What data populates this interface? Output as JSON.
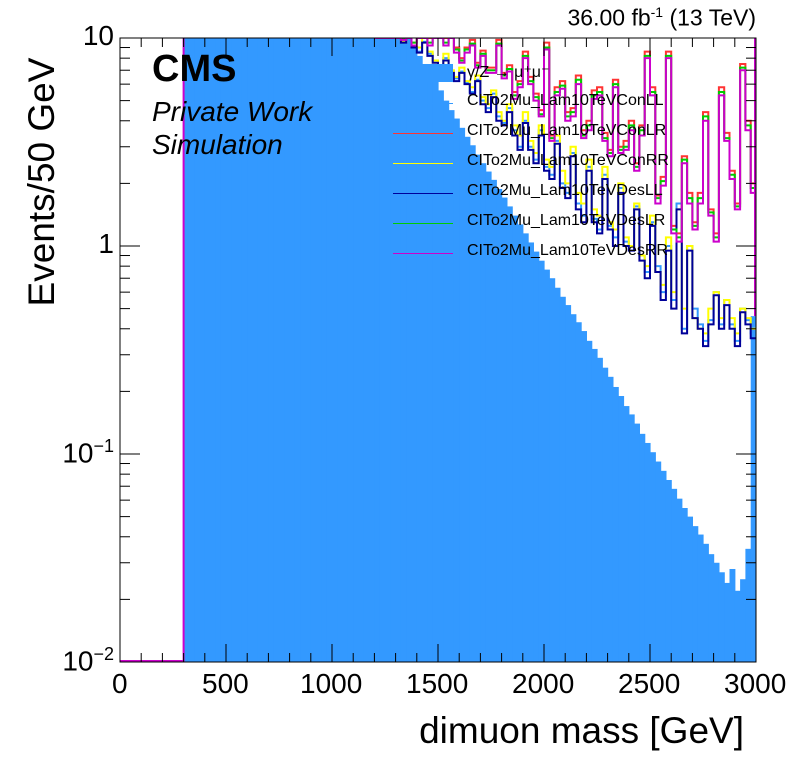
{
  "header": {
    "lumi_value": "36.00 fb",
    "lumi_exponent": "-1",
    "lumi_energy": " (13 TeV)",
    "experiment": "CMS",
    "subtitle_1": "Private Work",
    "subtitle_2": "Simulation"
  },
  "colors": {
    "dy_fill": "#3399ff",
    "ConLL": "#3399ff",
    "ConLR": "#ff3333",
    "ConRR": "#ffff00",
    "DesLL": "#000099",
    "DesLR": "#00cc00",
    "DesRR": "#cc00cc",
    "axis": "#000000"
  },
  "chart_data": {
    "type": "histogram",
    "xlabel": "dimuon mass [GeV]",
    "ylabel": "Events/50 GeV",
    "xlim": [
      0,
      3000
    ],
    "ylim": [
      0.01,
      10
    ],
    "yscale": "log",
    "bin_width": 25,
    "x_ticks": [
      "0",
      "500",
      "1000",
      "1500",
      "2000",
      "2500",
      "3000"
    ],
    "y_ticks": [
      {
        "value": 10,
        "base": "10",
        "exp": ""
      },
      {
        "value": 1,
        "base": "1",
        "exp": ""
      },
      {
        "value": 0.1,
        "base": "10",
        "exp": "−1"
      },
      {
        "value": 0.01,
        "base": "10",
        "exp": "−2"
      }
    ],
    "legend_position": "top-right",
    "background": {
      "name": "γ/Z → μ⁺μ⁻",
      "style": "fill",
      "x_start": 300,
      "x_end": 3000,
      "values": [
        12,
        12,
        12,
        12,
        12,
        12,
        12,
        12,
        12,
        12,
        12,
        12,
        12,
        12,
        12,
        12,
        12,
        12,
        12,
        12,
        12,
        12,
        12,
        12,
        12,
        12,
        12,
        12,
        12,
        12,
        12,
        12,
        12,
        12,
        12,
        12,
        12,
        12,
        12,
        12,
        12,
        11,
        10.0,
        9.1,
        8.2,
        7.5,
        6.8,
        6.2,
        5.6,
        5.0,
        4.5,
        4.1,
        3.7,
        3.35,
        3.05,
        2.75,
        2.5,
        2.28,
        2.08,
        1.88,
        1.71,
        1.55,
        1.4,
        1.27,
        1.15,
        1.04,
        0.94,
        0.85,
        0.77,
        0.7,
        0.63,
        0.57,
        0.52,
        0.47,
        0.43,
        0.39,
        0.35,
        0.32,
        0.29,
        0.26,
        0.235,
        0.21,
        0.19,
        0.17,
        0.155,
        0.14,
        0.125,
        0.113,
        0.102,
        0.092,
        0.083,
        0.075,
        0.068,
        0.061,
        0.055,
        0.05,
        0.045,
        0.041,
        0.037,
        0.033,
        0.03,
        0.027,
        0.024,
        0.028,
        0.022,
        0.025,
        0.035,
        0.46
      ]
    },
    "series": [
      {
        "name": "CITo2Mu_Lam10TeVConLL",
        "x_start": 1200,
        "values": [
          13,
          11,
          13,
          10.2,
          11,
          9.6,
          10.2,
          9.2,
          8.6,
          9.6,
          8.4,
          7.8,
          7.2,
          8.0,
          6.9,
          6.4,
          6.9,
          6.1,
          5.5,
          6.3,
          5.0,
          4.6,
          5.4,
          4.2,
          3.9,
          4.6,
          3.6,
          3.0,
          4.0,
          3.0,
          2.6,
          3.6,
          2.4,
          2.2,
          3.2,
          2.0,
          1.8,
          2.8,
          1.6,
          1.4,
          2.4,
          1.35,
          1.2,
          2.2,
          1.25,
          1.1,
          1.9,
          1.05,
          1.0,
          1.55,
          0.9,
          0.75,
          1.3,
          0.8,
          0.6,
          1.0,
          0.55,
          1.6,
          0.4,
          1.0,
          0.5,
          0.42,
          0.35,
          0.44,
          0.6,
          0.42,
          0.55,
          0.42,
          0.35,
          0.5,
          0.44,
          0.38
        ]
      },
      {
        "name": "CITo2Mu_Lam10TeVConLR",
        "x_start": 1200,
        "values": [
          13,
          11,
          13,
          11,
          13,
          10,
          11,
          9.5,
          13,
          11,
          10,
          13,
          11,
          10,
          11,
          9,
          8,
          9,
          9.8,
          7.6,
          8.7,
          7.2,
          7.2,
          9.8,
          6.8,
          7.4,
          5.5,
          6.2,
          8.6,
          6.5,
          5.4,
          4.5,
          9.5,
          3.4,
          5.8,
          6.2,
          4.4,
          4.6,
          6.6,
          3.6,
          4.0,
          5.6,
          5.8,
          3.5,
          2.9,
          6.3,
          3.0,
          3.2,
          4.0,
          2.5,
          3.8,
          8.6,
          5.8,
          1.75,
          2.15,
          8.6,
          1.25,
          1.15,
          2.7,
          1.8,
          1.3,
          1.8,
          4.4,
          1.5,
          1.15,
          5.8,
          3.5,
          2.3,
          1.6,
          7.5,
          4.0,
          2.0
        ]
      },
      {
        "name": "CITo2Mu_Lam10TeVConRR",
        "x_start": 1200,
        "values": [
          13,
          11,
          13,
          10.5,
          11,
          9.6,
          10.2,
          9.2,
          9.0,
          10,
          8.6,
          7.8,
          7.4,
          8.4,
          7.0,
          6.5,
          7.2,
          6.2,
          5.8,
          6.6,
          5.2,
          4.8,
          5.6,
          4.4,
          4.0,
          4.8,
          3.8,
          3.4,
          4.4,
          3.2,
          2.8,
          3.8,
          2.6,
          2.4,
          3.4,
          2.3,
          2.0,
          3.0,
          1.8,
          1.6,
          2.6,
          1.5,
          1.4,
          2.4,
          1.3,
          1.2,
          2.0,
          1.1,
          1.0,
          1.6,
          0.9,
          0.8,
          1.4,
          0.75,
          0.65,
          1.1,
          0.6,
          1.5,
          0.5,
          1.0,
          0.45,
          0.4,
          0.38,
          0.5,
          0.6,
          0.45,
          0.55,
          0.45,
          0.38,
          0.5,
          0.45,
          0.4
        ]
      },
      {
        "name": "CITo2Mu_Lam10TeVDesLL",
        "x_start": 1200,
        "values": [
          13,
          11,
          13,
          10,
          11,
          9.5,
          10,
          9,
          8.5,
          9.5,
          8.2,
          7.6,
          7,
          7.8,
          6.8,
          6.2,
          6.8,
          6.0,
          5.4,
          6.2,
          4.8,
          4.4,
          5.2,
          4.0,
          3.8,
          4.4,
          3.4,
          2.9,
          3.9,
          2.9,
          2.5,
          3.4,
          2.3,
          2.1,
          3.1,
          1.9,
          1.7,
          2.7,
          1.5,
          1.3,
          2.3,
          1.3,
          1.15,
          2.1,
          1.2,
          1.0,
          1.8,
          1.0,
          0.95,
          1.5,
          0.85,
          0.7,
          1.25,
          0.75,
          0.55,
          0.95,
          0.5,
          1.5,
          0.38,
          0.95,
          0.45,
          0.4,
          0.33,
          0.42,
          0.58,
          0.4,
          0.52,
          0.4,
          0.33,
          0.48,
          0.42,
          0.36
        ]
      },
      {
        "name": "CITo2Mu_Lam10TeVDesLR",
        "x_start": 1200,
        "values": [
          13,
          11,
          13,
          11,
          13,
          10,
          11,
          9.5,
          12,
          10.5,
          9.5,
          12,
          10.5,
          9.5,
          10.5,
          8.8,
          7.8,
          8.8,
          9.4,
          7.4,
          8.4,
          7.0,
          7.0,
          9.4,
          6.6,
          7.1,
          5.3,
          6.0,
          8.2,
          6.2,
          5.2,
          4.3,
          9.0,
          3.3,
          5.5,
          5.9,
          4.2,
          4.4,
          6.3,
          3.4,
          3.8,
          5.3,
          5.5,
          3.3,
          2.8,
          6.0,
          2.9,
          3.0,
          3.8,
          2.4,
          3.6,
          8.2,
          5.5,
          1.7,
          2.05,
          8.2,
          1.2,
          1.1,
          2.6,
          1.7,
          1.25,
          1.7,
          4.2,
          1.45,
          1.1,
          5.5,
          3.3,
          2.2,
          1.55,
          7.2,
          3.8,
          1.9
        ]
      },
      {
        "name": "CITo2Mu_Lam10TeVDesRR",
        "x_start": 1200,
        "values": [
          13,
          11,
          13,
          10.8,
          12,
          9.8,
          10.8,
          9.2,
          11.5,
          10.2,
          9.2,
          11.5,
          10.2,
          9.2,
          10.2,
          8.5,
          7.6,
          8.5,
          9.2,
          7.2,
          8.2,
          6.8,
          6.8,
          9.2,
          6.4,
          6.9,
          5.1,
          5.8,
          8.0,
          6.0,
          5.0,
          4.2,
          8.8,
          3.2,
          5.3,
          5.7,
          4.0,
          4.2,
          6.0,
          3.3,
          3.6,
          5.1,
          5.3,
          3.2,
          2.7,
          5.8,
          2.8,
          2.9,
          3.6,
          2.3,
          3.4,
          8.0,
          5.3,
          1.6,
          1.95,
          8.0,
          1.15,
          1.05,
          2.5,
          1.6,
          1.2,
          1.6,
          4.0,
          1.4,
          1.05,
          5.3,
          3.2,
          2.1,
          1.5,
          7.0,
          3.6,
          1.8
        ]
      }
    ],
    "flat_line": {
      "series": "CITo2Mu_Lam10TeVDesRR",
      "x_start": 0,
      "x_end": 300,
      "value": 0.01
    }
  }
}
